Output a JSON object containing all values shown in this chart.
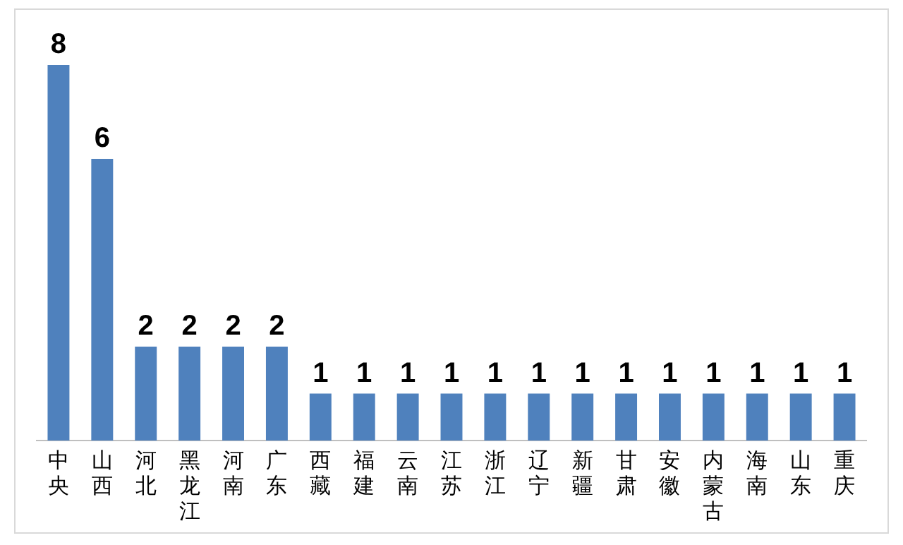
{
  "chart_data": {
    "type": "bar",
    "categories": [
      "中央",
      "山西",
      "河北",
      "黑龙江",
      "河南",
      "广东",
      "西藏",
      "福建",
      "云南",
      "江苏",
      "浙江",
      "辽宁",
      "新疆",
      "甘肃",
      "安徽",
      "内蒙古",
      "海南",
      "山东",
      "重庆"
    ],
    "values": [
      8,
      6,
      2,
      2,
      2,
      2,
      1,
      1,
      1,
      1,
      1,
      1,
      1,
      1,
      1,
      1,
      1,
      1,
      1
    ],
    "color": "#4f81bd",
    "data_labels": true,
    "tick_labels": "x",
    "grid": false,
    "legend": false
  }
}
